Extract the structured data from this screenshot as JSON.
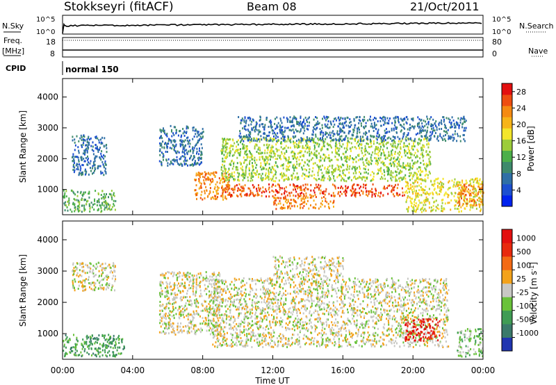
{
  "header": {
    "station": "Stokkseyri (fitACF)",
    "beam": "Beam 08",
    "date": "21/Oct/2011"
  },
  "summary": {
    "nsky_label": "N.Sky",
    "nsearch_label": "N.Search",
    "freq_label": "Freq.",
    "freq_unit": "[MHz]",
    "nave_label": "Nave",
    "cpid_label": "CPID",
    "cpid_value": "normal 150",
    "noise_ticks": [
      "10^5",
      "10^0"
    ],
    "freq_ticks": [
      "18",
      "8"
    ],
    "nave_ticks": [
      "80",
      "0"
    ]
  },
  "chart_data": [
    {
      "type": "heatmap",
      "name": "power",
      "title": "",
      "xlabel": "Time UT",
      "ylabel": "Slant Range [km]",
      "x_ticks": [
        "00:00",
        "04:00",
        "08:00",
        "12:00",
        "16:00",
        "20:00",
        "00:00"
      ],
      "xlim_hours": [
        0,
        24
      ],
      "y_ticks": [
        1000,
        2000,
        3000,
        4000
      ],
      "ylim_km": [
        180,
        4600
      ],
      "colorbar": {
        "label": "Power [dB]",
        "ticks": [
          4,
          8,
          12,
          16,
          20,
          24,
          28
        ],
        "range": [
          0,
          30
        ],
        "colors": [
          "#0022ee",
          "#1c4fd0",
          "#2f6fa6",
          "#3e8a6c",
          "#4caf4a",
          "#9ccc3a",
          "#f3e52a",
          "#f7b419",
          "#f58a12",
          "#ee4d10",
          "#e30f0f"
        ]
      },
      "regions": [
        {
          "t": [
            0.0,
            3.0
          ],
          "r": [
            300,
            1000
          ],
          "level": 12
        },
        {
          "t": [
            0.5,
            2.5
          ],
          "r": [
            1500,
            2800
          ],
          "level": 6
        },
        {
          "t": [
            5.5,
            8.0
          ],
          "r": [
            1800,
            3100
          ],
          "level": 6
        },
        {
          "t": [
            7.5,
            9.5
          ],
          "r": [
            700,
            1600
          ],
          "level": 25
        },
        {
          "t": [
            9.0,
            19.5
          ],
          "r": [
            800,
            1200
          ],
          "level": 28
        },
        {
          "t": [
            12.0,
            15.5
          ],
          "r": [
            400,
            800
          ],
          "level": 25
        },
        {
          "t": [
            9.0,
            21.0
          ],
          "r": [
            1300,
            2700
          ],
          "level": 14
        },
        {
          "t": [
            10.0,
            23.0
          ],
          "r": [
            2600,
            3400
          ],
          "level": 6
        },
        {
          "t": [
            19.5,
            24.0
          ],
          "r": [
            300,
            1400
          ],
          "level": 18
        },
        {
          "t": [
            22.5,
            24.0
          ],
          "r": [
            500,
            1200
          ],
          "level": 24
        }
      ]
    },
    {
      "type": "heatmap",
      "name": "velocity",
      "title": "",
      "xlabel": "Time UT",
      "ylabel": "Slant Range [km]",
      "x_ticks": [
        "00:00",
        "04:00",
        "08:00",
        "12:00",
        "16:00",
        "20:00",
        "00:00"
      ],
      "xlim_hours": [
        0,
        24
      ],
      "y_ticks": [
        1000,
        2000,
        3000,
        4000
      ],
      "ylim_km": [
        180,
        4600
      ],
      "colorbar": {
        "label": "Velocity [m s^-1]",
        "ticks": [
          "1000",
          "500",
          "100",
          "25",
          "-25",
          "-100",
          "-500",
          "-1000"
        ],
        "colors": [
          "#2035b0",
          "#3a7a6a",
          "#3f9c54",
          "#69c23a",
          "#c8c8c4",
          "#f3a21a",
          "#f36a14",
          "#e8290e",
          "#e30f0f"
        ]
      },
      "regions": [
        {
          "t": [
            0.0,
            3.5
          ],
          "r": [
            300,
            1000
          ],
          "level": 2
        },
        {
          "t": [
            0.5,
            3.0
          ],
          "r": [
            2400,
            3300
          ],
          "level": 4
        },
        {
          "t": [
            5.5,
            9.0
          ],
          "r": [
            1000,
            3000
          ],
          "level": 4
        },
        {
          "t": [
            8.5,
            22.0
          ],
          "r": [
            600,
            2800
          ],
          "level": 4
        },
        {
          "t": [
            12.0,
            16.0
          ],
          "r": [
            2800,
            3500
          ],
          "level": 4
        },
        {
          "t": [
            19.5,
            21.5
          ],
          "r": [
            800,
            1500
          ],
          "level": 8
        },
        {
          "t": [
            22.5,
            24.0
          ],
          "r": [
            300,
            1200
          ],
          "level": 3
        }
      ]
    }
  ]
}
